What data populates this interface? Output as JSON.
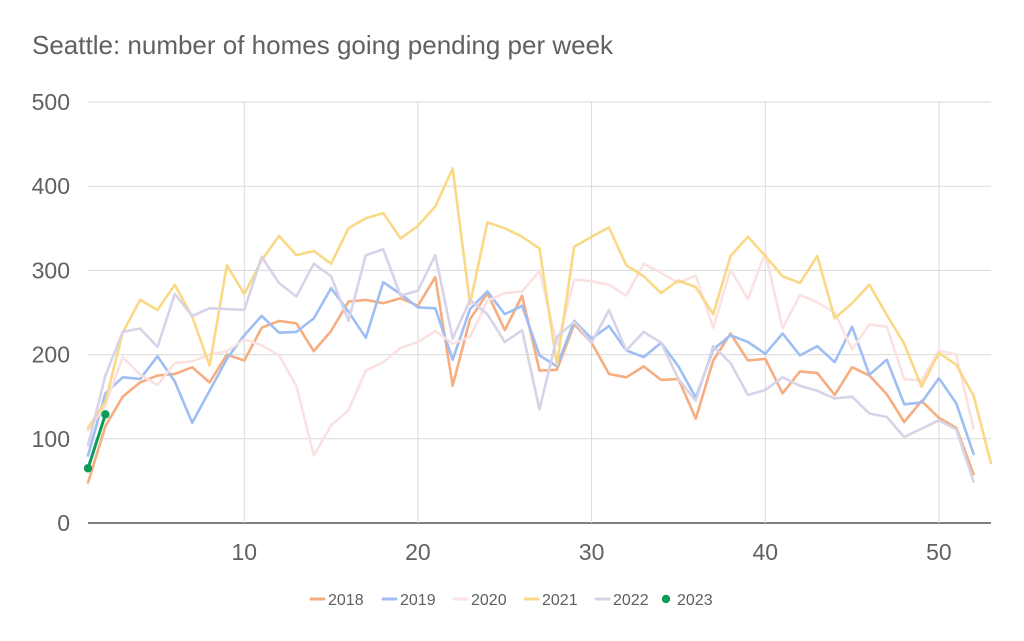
{
  "chart_data": {
    "type": "line",
    "title": "Seattle: number of homes going pending per week",
    "xlabel": "",
    "ylabel": "",
    "xlim": [
      1,
      53
    ],
    "ylim": [
      0,
      500
    ],
    "x_ticks": [
      10,
      20,
      30,
      40,
      50
    ],
    "y_ticks": [
      0,
      100,
      200,
      300,
      400,
      500
    ],
    "grid": true,
    "legend_position": "bottom",
    "series": [
      {
        "name": "2018",
        "color": "#f6ad80",
        "markers": false,
        "values": [
          48,
          115,
          150,
          167,
          175,
          177,
          185,
          167,
          200,
          193,
          232,
          240,
          237,
          204,
          228,
          263,
          265,
          261,
          267,
          258,
          292,
          163,
          242,
          273,
          229,
          270,
          181,
          182,
          236,
          214,
          177,
          173,
          186,
          170,
          171,
          124,
          193,
          225,
          193,
          195,
          154,
          180,
          178,
          152,
          185,
          175,
          153,
          120,
          145,
          125,
          113,
          58
        ]
      },
      {
        "name": "2019",
        "color": "#9fbef3",
        "markers": false,
        "values": [
          80,
          154,
          173,
          171,
          198,
          168,
          119,
          157,
          195,
          223,
          246,
          226,
          227,
          243,
          279,
          251,
          220,
          286,
          272,
          256,
          255,
          194,
          254,
          275,
          248,
          258,
          199,
          186,
          240,
          219,
          234,
          205,
          197,
          214,
          186,
          149,
          206,
          223,
          215,
          201,
          225,
          199,
          210,
          191,
          233,
          176,
          194,
          141,
          143,
          172,
          142,
          82
        ]
      },
      {
        "name": "2020",
        "color": "#fae2e2",
        "markers": false,
        "values": [
          110,
          140,
          197,
          176,
          164,
          190,
          192,
          200,
          204,
          218,
          211,
          199,
          163,
          80,
          116,
          134,
          181,
          191,
          208,
          215,
          228,
          213,
          221,
          264,
          273,
          275,
          299,
          212,
          289,
          287,
          283,
          270,
          308,
          297,
          285,
          294,
          232,
          301,
          266,
          321,
          231,
          271,
          262,
          250,
          206,
          236,
          233,
          171,
          169,
          205,
          200,
          112
        ]
      },
      {
        "name": "2021",
        "color": "#f9d986",
        "markers": false,
        "values": [
          113,
          144,
          226,
          265,
          253,
          283,
          245,
          187,
          306,
          272,
          312,
          341,
          318,
          323,
          308,
          350,
          362,
          368,
          338,
          353,
          376,
          421,
          260,
          357,
          350,
          340,
          326,
          188,
          328,
          340,
          351,
          306,
          293,
          273,
          288,
          280,
          248,
          317,
          340,
          317,
          293,
          285,
          317,
          243,
          261,
          283,
          247,
          213,
          162,
          202,
          188,
          151,
          71
        ]
      },
      {
        "name": "2022",
        "color": "#d7d3e8",
        "markers": false,
        "values": [
          92,
          175,
          227,
          231,
          209,
          272,
          246,
          255,
          254,
          253,
          316,
          285,
          269,
          308,
          293,
          240,
          318,
          325,
          270,
          276,
          318,
          219,
          265,
          248,
          215,
          229,
          135,
          221,
          239,
          214,
          253,
          205,
          227,
          214,
          171,
          145,
          210,
          190,
          152,
          158,
          173,
          163,
          157,
          148,
          150,
          130,
          126,
          102,
          112,
          122,
          111,
          49
        ]
      },
      {
        "name": "2023",
        "color": "#0a9d58",
        "markers": true,
        "values": [
          65,
          129
        ]
      }
    ]
  }
}
